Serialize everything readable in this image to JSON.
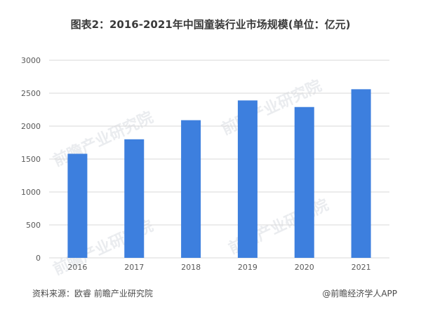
{
  "title": "图表2：2016-2021年中国童装行业市场规模(单位：亿元)",
  "footer": {
    "source": "资料来源：欧睿 前瞻产业研究院",
    "brand": "@前瞻经济学人APP"
  },
  "watermark": "前瞻产业研究院",
  "chart_data": {
    "type": "bar",
    "title": "图表2：2016-2021年中国童装行业市场规模(单位：亿元)",
    "categories": [
      "2016",
      "2017",
      "2018",
      "2019",
      "2020",
      "2021"
    ],
    "values": [
      1580,
      1800,
      2090,
      2390,
      2290,
      2560
    ],
    "ylim": [
      0,
      3000
    ],
    "yticks": [
      0,
      500,
      1000,
      1500,
      2000,
      2500,
      3000
    ],
    "grid": true,
    "legend": "none",
    "bar_color": "#3d7fde",
    "grid_color": "#d9d9d9"
  }
}
